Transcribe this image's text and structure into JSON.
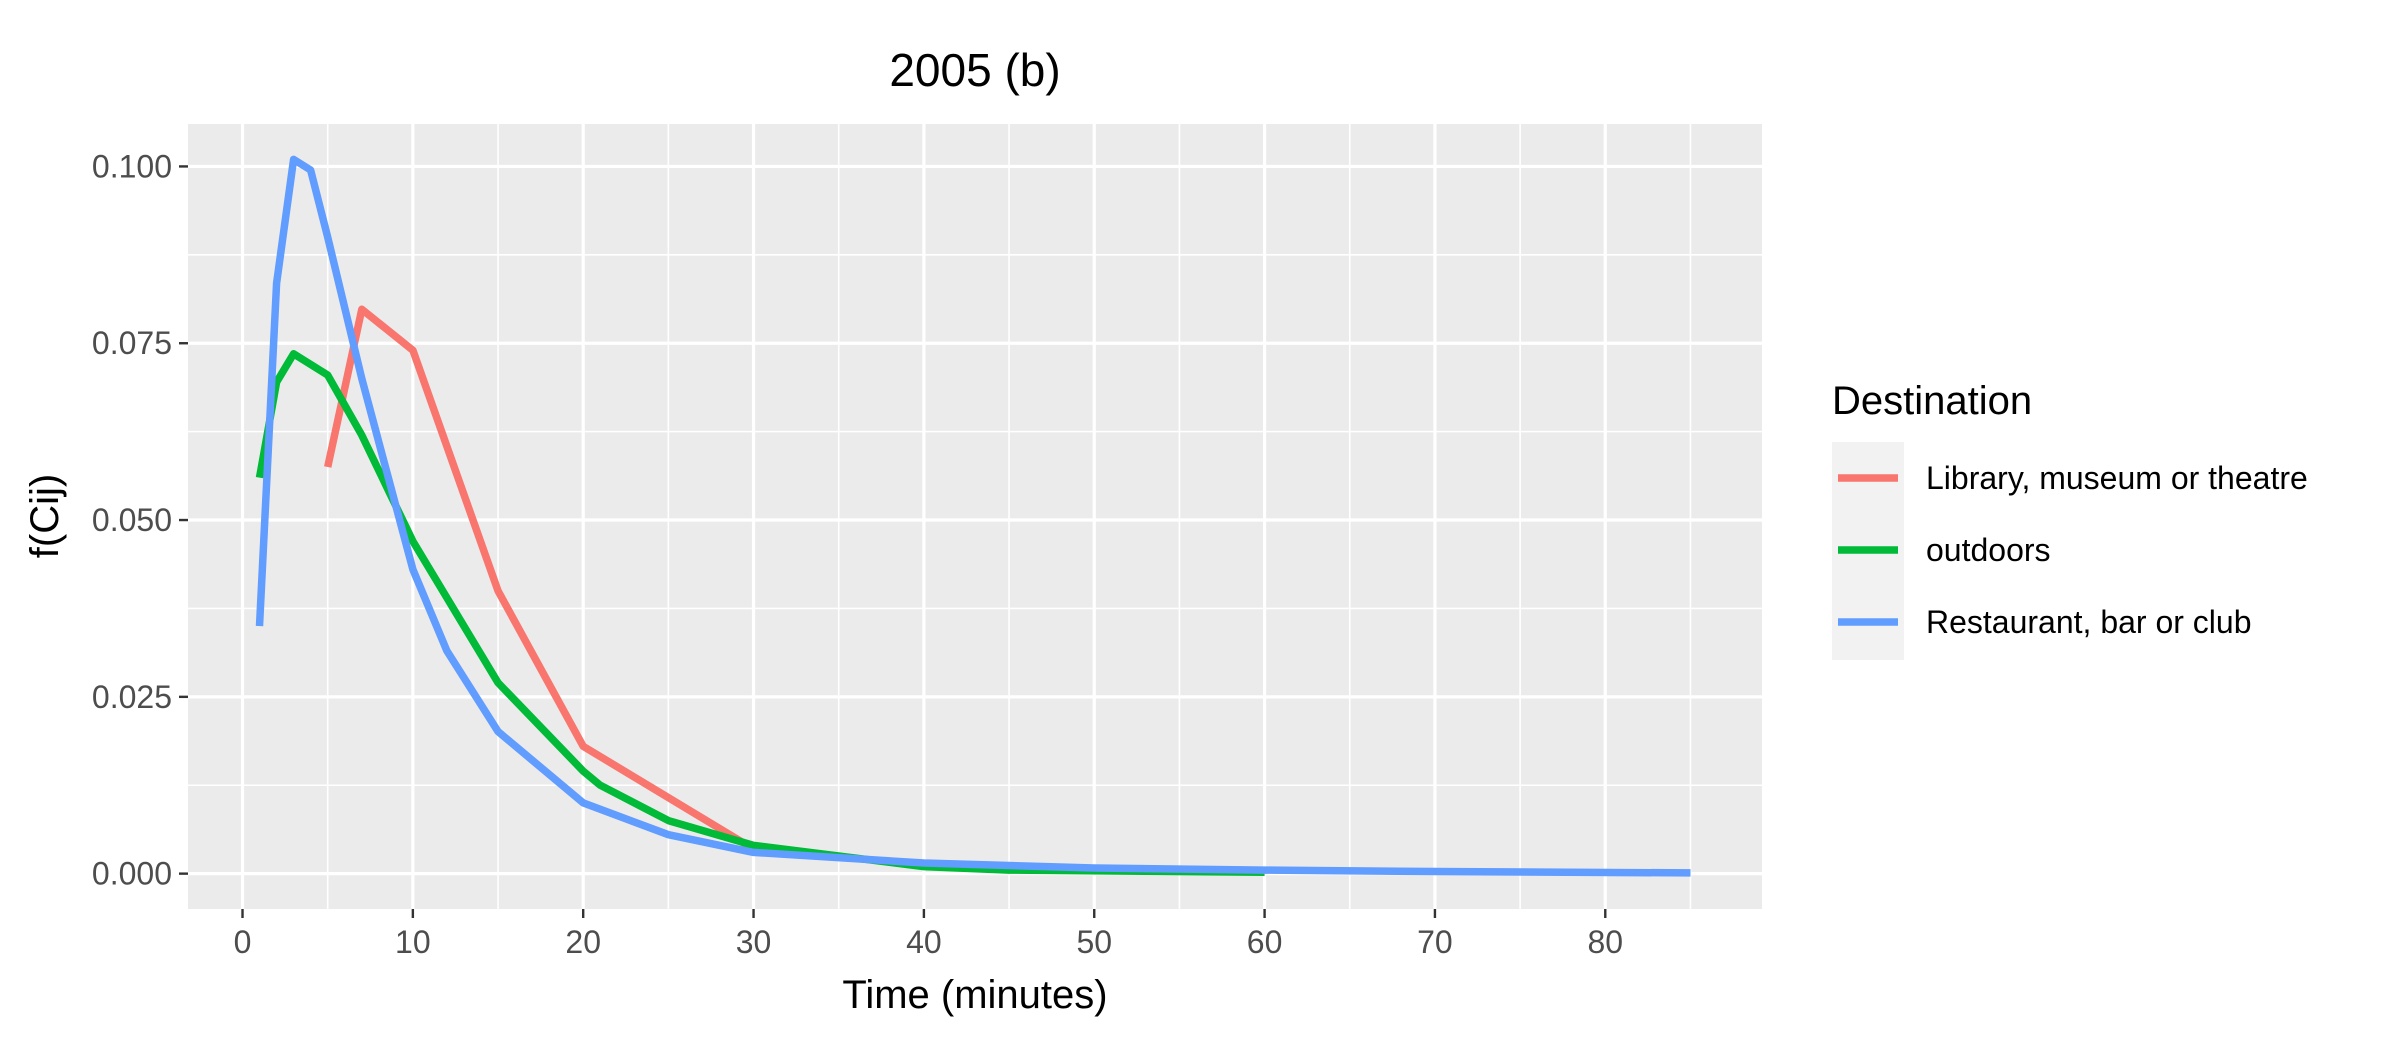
{
  "chart_data": {
    "type": "line",
    "title": "2005 (b)",
    "xlabel": "Time (minutes)",
    "ylabel": "f(Cij)",
    "xlim": [
      -3.2,
      89.2
    ],
    "ylim": [
      -0.005,
      0.106
    ],
    "x_ticks": [
      0,
      10,
      20,
      30,
      40,
      50,
      60,
      70,
      80
    ],
    "x_tick_labels": [
      "0",
      "10",
      "20",
      "30",
      "40",
      "50",
      "60",
      "70",
      "80"
    ],
    "y_ticks": [
      0,
      0.025,
      0.05,
      0.075,
      0.1
    ],
    "y_tick_labels": [
      "0.000",
      "0.025",
      "0.050",
      "0.075",
      "0.100"
    ],
    "grid": true,
    "legend": {
      "title": "Destination",
      "position": "right",
      "entries": [
        "Library, museum or theatre",
        "outdoors",
        "Restaurant, bar or club"
      ]
    },
    "series": [
      {
        "name": "Library, museum or theatre",
        "color": "#F8766D",
        "x": [
          5,
          7,
          10,
          15,
          20,
          30
        ],
        "y": [
          0.0575,
          0.0798,
          0.074,
          0.04,
          0.018,
          0.0035
        ]
      },
      {
        "name": "outdoors",
        "color": "#00BA38",
        "x": [
          1,
          2,
          3,
          5,
          7,
          10,
          15,
          20,
          21,
          25,
          30,
          40,
          45,
          60
        ],
        "y": [
          0.056,
          0.0695,
          0.0735,
          0.0705,
          0.062,
          0.047,
          0.027,
          0.0145,
          0.0125,
          0.0075,
          0.004,
          0.001,
          0.0005,
          0.0002
        ]
      },
      {
        "name": "Restaurant, bar or club",
        "color": "#619CFF",
        "x": [
          1,
          2,
          3,
          4,
          5,
          7,
          10,
          12,
          15,
          20,
          25,
          30,
          40,
          50,
          60,
          70,
          85
        ],
        "y": [
          0.035,
          0.0835,
          0.101,
          0.0995,
          0.09,
          0.07,
          0.043,
          0.0315,
          0.0201,
          0.01,
          0.0055,
          0.003,
          0.0015,
          0.0008,
          0.0005,
          0.0003,
          0.0001
        ]
      }
    ]
  }
}
